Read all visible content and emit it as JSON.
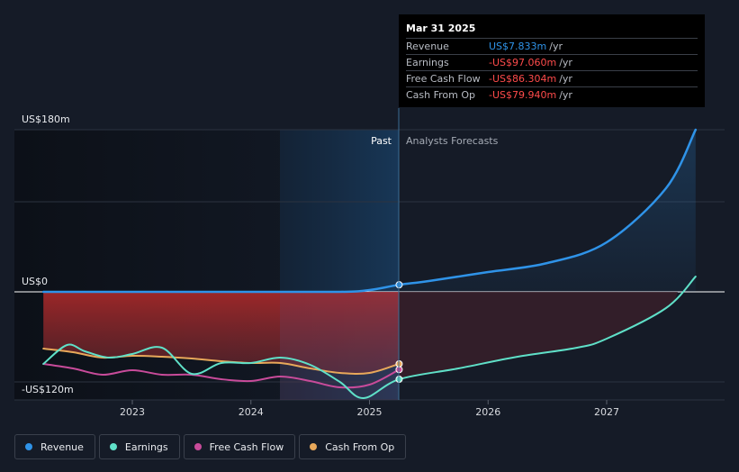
{
  "chart_data": {
    "type": "line",
    "y_axis_labels": [
      "US$180m",
      "US$0",
      "-US$120m"
    ],
    "ylim": [
      -120,
      180
    ],
    "x_ticks": [
      "2023",
      "2024",
      "2025",
      "2026",
      "2027"
    ],
    "past_label": "Past",
    "forecast_label": "Analysts Forecasts",
    "divider_date": "Mar 31 2025",
    "series": [
      {
        "name": "Revenue",
        "color": "#2f93e8",
        "points": [
          [
            2022.25,
            0
          ],
          [
            2023,
            0
          ],
          [
            2024,
            0
          ],
          [
            2024.75,
            0
          ],
          [
            2025.0,
            2
          ],
          [
            2025.25,
            7.833
          ],
          [
            2025.5,
            12
          ],
          [
            2026.0,
            22
          ],
          [
            2026.5,
            32
          ],
          [
            2027.0,
            55
          ],
          [
            2027.5,
            115
          ],
          [
            2027.75,
            180
          ]
        ]
      },
      {
        "name": "Earnings",
        "color": "#5fe0c8",
        "points": [
          [
            2022.25,
            -80
          ],
          [
            2022.45,
            -59
          ],
          [
            2022.6,
            -66
          ],
          [
            2022.8,
            -73
          ],
          [
            2023.0,
            -69
          ],
          [
            2023.25,
            -62
          ],
          [
            2023.5,
            -91
          ],
          [
            2023.75,
            -79
          ],
          [
            2024.0,
            -79
          ],
          [
            2024.25,
            -73
          ],
          [
            2024.5,
            -81
          ],
          [
            2024.75,
            -100
          ],
          [
            2024.95,
            -118
          ],
          [
            2025.25,
            -97.06
          ],
          [
            2025.75,
            -85
          ],
          [
            2026.25,
            -72
          ],
          [
            2026.75,
            -62
          ],
          [
            2027.0,
            -52
          ],
          [
            2027.5,
            -18
          ],
          [
            2027.75,
            17
          ]
        ]
      },
      {
        "name": "Free Cash Flow",
        "color": "#c84b9a",
        "points": [
          [
            2022.25,
            -80
          ],
          [
            2022.5,
            -85
          ],
          [
            2022.75,
            -92
          ],
          [
            2023.0,
            -87
          ],
          [
            2023.25,
            -92
          ],
          [
            2023.5,
            -92
          ],
          [
            2023.75,
            -97
          ],
          [
            2024.0,
            -99
          ],
          [
            2024.25,
            -94
          ],
          [
            2024.5,
            -99
          ],
          [
            2024.75,
            -106
          ],
          [
            2025.0,
            -103
          ],
          [
            2025.25,
            -86.304
          ]
        ]
      },
      {
        "name": "Cash From Op",
        "color": "#e8a85a",
        "points": [
          [
            2022.25,
            -63
          ],
          [
            2022.5,
            -67
          ],
          [
            2022.75,
            -73
          ],
          [
            2023.0,
            -71
          ],
          [
            2023.25,
            -72
          ],
          [
            2023.5,
            -74
          ],
          [
            2023.75,
            -77
          ],
          [
            2024.0,
            -79
          ],
          [
            2024.25,
            -79
          ],
          [
            2024.5,
            -85
          ],
          [
            2024.75,
            -90
          ],
          [
            2025.0,
            -90
          ],
          [
            2025.25,
            -79.94
          ]
        ]
      }
    ]
  },
  "tooltip": {
    "date": "Mar 31 2025",
    "rows": [
      {
        "label": "Revenue",
        "value": "US$7.833m",
        "unit": "/yr",
        "color": "#2f93e8"
      },
      {
        "label": "Earnings",
        "value": "-US$97.060m",
        "unit": "/yr",
        "color": "#ff4b4b"
      },
      {
        "label": "Free Cash Flow",
        "value": "-US$86.304m",
        "unit": "/yr",
        "color": "#ff4b4b"
      },
      {
        "label": "Cash From Op",
        "value": "-US$79.940m",
        "unit": "/yr",
        "color": "#ff4b4b"
      }
    ]
  },
  "legend": [
    {
      "label": "Revenue",
      "color": "#2f93e8"
    },
    {
      "label": "Earnings",
      "color": "#5fe0c8"
    },
    {
      "label": "Free Cash Flow",
      "color": "#c84b9a"
    },
    {
      "label": "Cash From Op",
      "color": "#e8a85a"
    }
  ]
}
